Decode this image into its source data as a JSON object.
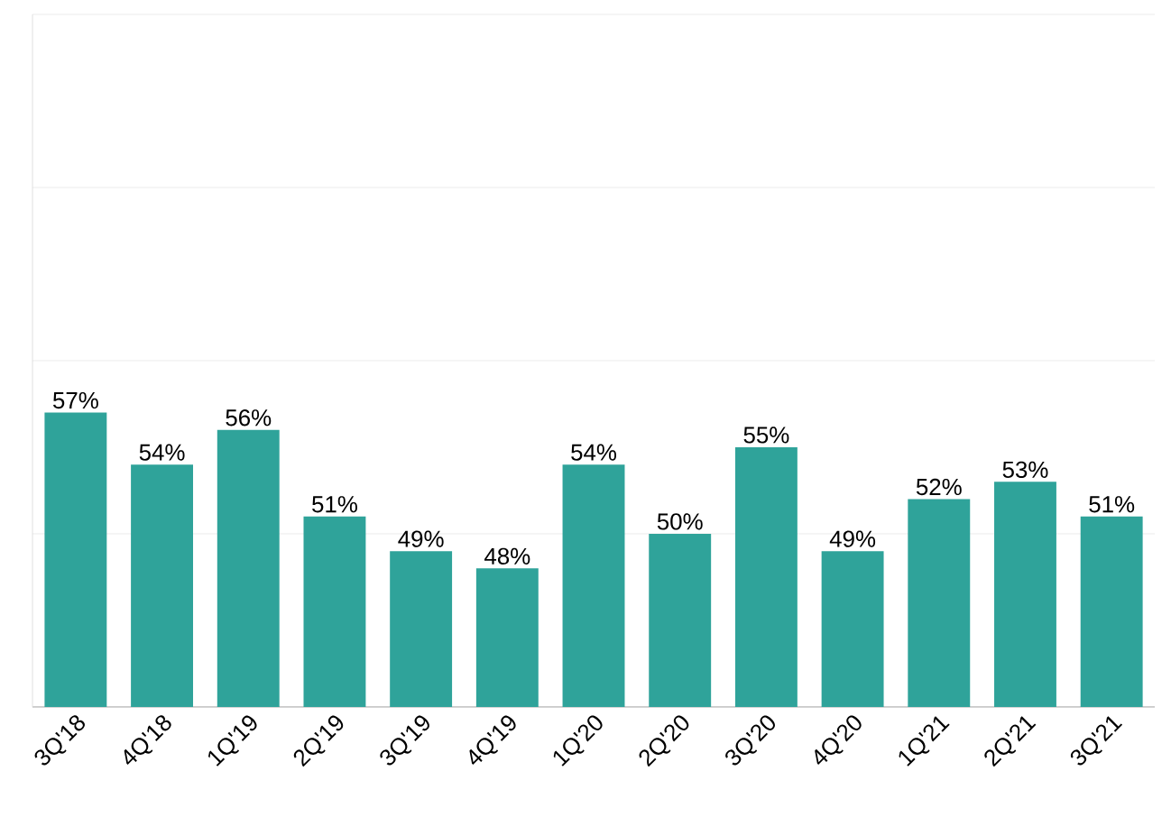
{
  "chart_data": {
    "type": "bar",
    "categories": [
      "3Q'18",
      "4Q'18",
      "1Q'19",
      "2Q'19",
      "3Q'19",
      "4Q'19",
      "1Q'20",
      "2Q'20",
      "3Q'20",
      "4Q'20",
      "1Q'21",
      "2Q'21",
      "3Q'21"
    ],
    "values": [
      57,
      54,
      56,
      51,
      49,
      48,
      54,
      50,
      55,
      49,
      52,
      53,
      51
    ],
    "value_labels": [
      "57%",
      "54%",
      "56%",
      "51%",
      "49%",
      "48%",
      "54%",
      "50%",
      "55%",
      "49%",
      "52%",
      "53%",
      "51%"
    ],
    "color": "#2fa39a",
    "ylim": [
      40,
      80
    ],
    "yticks": [
      {
        "value": 40,
        "label": null
      },
      {
        "value": 50,
        "label": null
      },
      {
        "value": 60,
        "label": null
      },
      {
        "value": 70,
        "label": null
      },
      {
        "value": 80,
        "label": null
      }
    ],
    "grid": "y",
    "tick_labels": "x"
  }
}
